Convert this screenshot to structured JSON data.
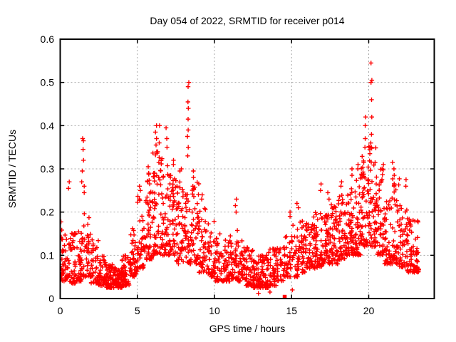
{
  "chart_data": {
    "type": "scatter",
    "title": "Day 054 of 2022, SRMTID for receiver p014",
    "xlabel": "GPS time / hours",
    "ylabel": "SRMTID / TECUs",
    "xlim": [
      0,
      24.25
    ],
    "ylim": [
      0,
      0.6
    ],
    "xticks": [
      0,
      5,
      10,
      15,
      20
    ],
    "xtick_labels": [
      "0",
      "5",
      "10",
      "15",
      "20"
    ],
    "yticks": [
      0,
      0.1,
      0.2,
      0.3,
      0.4,
      0.5,
      0.6
    ],
    "ytick_labels": [
      "0",
      "0.1",
      "0.2",
      "0.3",
      "0.4",
      "0.5",
      "0.6"
    ],
    "grid": true,
    "legend": "none",
    "marker": {
      "shape": "plus",
      "color": "#ff0000",
      "size": 7
    },
    "grid_color": "#a8a8a8",
    "axis_color": "#000000",
    "special_points": [
      {
        "x": 14.55,
        "y": 0.004,
        "marker": "filled-square",
        "color": "#ff0000"
      }
    ],
    "low_outliers": [
      [
        12.85,
        0.012
      ],
      [
        13.6,
        0.015
      ],
      [
        15.05,
        0.02
      ]
    ],
    "density_bands": [
      [
        0.0,
        0.5,
        45,
        0.04,
        0.18
      ],
      [
        0.5,
        1.0,
        45,
        0.035,
        0.16
      ],
      [
        1.0,
        1.5,
        40,
        0.04,
        0.16
      ],
      [
        1.5,
        2.0,
        42,
        0.05,
        0.2
      ],
      [
        2.0,
        2.5,
        40,
        0.035,
        0.14
      ],
      [
        2.5,
        3.0,
        48,
        0.03,
        0.1
      ],
      [
        3.0,
        3.5,
        55,
        0.025,
        0.085
      ],
      [
        3.5,
        4.0,
        60,
        0.025,
        0.08
      ],
      [
        4.0,
        4.5,
        50,
        0.03,
        0.1
      ],
      [
        4.5,
        5.0,
        42,
        0.05,
        0.17
      ],
      [
        5.0,
        5.5,
        45,
        0.07,
        0.24
      ],
      [
        5.5,
        6.0,
        48,
        0.09,
        0.3
      ],
      [
        6.0,
        6.5,
        55,
        0.1,
        0.34
      ],
      [
        6.5,
        7.0,
        52,
        0.1,
        0.33
      ],
      [
        7.0,
        7.5,
        50,
        0.1,
        0.29
      ],
      [
        7.5,
        8.0,
        48,
        0.08,
        0.27
      ],
      [
        8.0,
        8.5,
        45,
        0.08,
        0.26
      ],
      [
        8.5,
        9.0,
        45,
        0.08,
        0.27
      ],
      [
        9.0,
        9.5,
        42,
        0.06,
        0.21
      ],
      [
        9.5,
        10.0,
        40,
        0.05,
        0.18
      ],
      [
        10.0,
        10.5,
        40,
        0.04,
        0.15
      ],
      [
        10.5,
        11.0,
        42,
        0.04,
        0.14
      ],
      [
        11.0,
        11.5,
        45,
        0.045,
        0.16
      ],
      [
        11.5,
        12.0,
        45,
        0.04,
        0.145
      ],
      [
        12.0,
        12.5,
        48,
        0.03,
        0.12
      ],
      [
        12.5,
        13.0,
        52,
        0.025,
        0.1
      ],
      [
        13.0,
        13.5,
        52,
        0.025,
        0.1
      ],
      [
        13.5,
        14.0,
        45,
        0.03,
        0.12
      ],
      [
        14.0,
        14.5,
        30,
        0.04,
        0.12
      ],
      [
        14.5,
        15.0,
        35,
        0.05,
        0.15
      ],
      [
        15.0,
        15.5,
        40,
        0.05,
        0.17
      ],
      [
        15.5,
        16.0,
        42,
        0.06,
        0.18
      ],
      [
        16.0,
        16.5,
        45,
        0.07,
        0.19
      ],
      [
        16.5,
        17.0,
        48,
        0.07,
        0.2
      ],
      [
        17.0,
        17.5,
        50,
        0.08,
        0.2
      ],
      [
        17.5,
        18.0,
        50,
        0.08,
        0.22
      ],
      [
        18.0,
        18.5,
        52,
        0.09,
        0.24
      ],
      [
        18.5,
        19.0,
        52,
        0.1,
        0.26
      ],
      [
        19.0,
        19.5,
        52,
        0.1,
        0.28
      ],
      [
        19.5,
        20.0,
        55,
        0.12,
        0.33
      ],
      [
        20.0,
        20.5,
        58,
        0.12,
        0.36
      ],
      [
        20.5,
        21.0,
        52,
        0.1,
        0.3
      ],
      [
        21.0,
        21.5,
        48,
        0.08,
        0.25
      ],
      [
        21.5,
        22.0,
        48,
        0.08,
        0.28
      ],
      [
        22.0,
        22.5,
        45,
        0.07,
        0.22
      ],
      [
        22.5,
        23.0,
        45,
        0.06,
        0.19
      ],
      [
        23.0,
        23.25,
        25,
        0.06,
        0.18
      ]
    ],
    "spikes": [
      [
        0.55,
        [
          0.255,
          0.27
        ]
      ],
      [
        1.45,
        [
          0.27,
          0.295,
          0.32,
          0.345,
          0.365,
          0.37
        ]
      ],
      [
        1.6,
        [
          0.245,
          0.26
        ]
      ],
      [
        5.2,
        [
          0.25,
          0.26
        ]
      ],
      [
        5.7,
        [
          0.27,
          0.29,
          0.305
        ]
      ],
      [
        6.2,
        [
          0.355,
          0.37,
          0.385,
          0.4
        ]
      ],
      [
        6.45,
        [
          0.36,
          0.4
        ]
      ],
      [
        6.9,
        [
          0.35,
          0.37,
          0.395
        ]
      ],
      [
        7.3,
        [
          0.31,
          0.32
        ]
      ],
      [
        7.8,
        [
          0.295,
          0.3
        ]
      ],
      [
        8.3,
        [
          0.33,
          0.35,
          0.375,
          0.39,
          0.415,
          0.44,
          0.455,
          0.49,
          0.5
        ]
      ],
      [
        8.6,
        [
          0.26,
          0.28,
          0.295
        ]
      ],
      [
        9.2,
        [
          0.23,
          0.24
        ]
      ],
      [
        11.4,
        [
          0.2,
          0.215,
          0.23
        ]
      ],
      [
        14.9,
        [
          0.19,
          0.2
        ]
      ],
      [
        15.4,
        [
          0.21,
          0.22
        ]
      ],
      [
        16.9,
        [
          0.25,
          0.265
        ]
      ],
      [
        17.4,
        [
          0.23,
          0.245
        ]
      ],
      [
        18.2,
        [
          0.26,
          0.27
        ]
      ],
      [
        18.9,
        [
          0.285,
          0.3
        ]
      ],
      [
        19.3,
        [
          0.3,
          0.31
        ]
      ],
      [
        19.8,
        [
          0.35,
          0.37,
          0.4,
          0.42
        ]
      ],
      [
        20.15,
        [
          0.38,
          0.42,
          0.46,
          0.5,
          0.505,
          0.545
        ]
      ],
      [
        20.9,
        [
          0.3,
          0.31
        ]
      ],
      [
        21.6,
        [
          0.26,
          0.285,
          0.3,
          0.315
        ]
      ],
      [
        22.4,
        [
          0.26,
          0.275
        ]
      ]
    ]
  }
}
